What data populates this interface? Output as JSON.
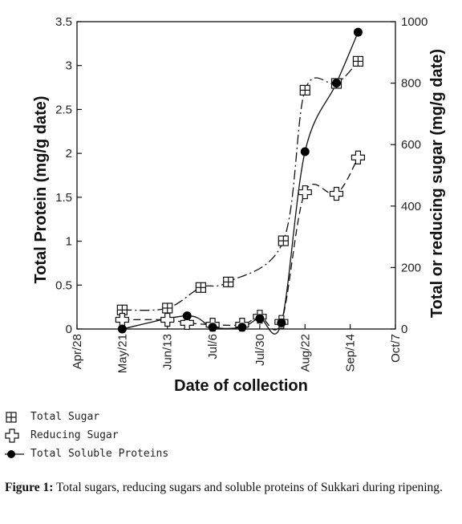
{
  "chart_data": {
    "type": "line",
    "xlabel": "Date of collection",
    "ylabel": "Total Protein (mg/g date)",
    "y2label": "Total or reducing sugar (mg/g date)",
    "x_ticks": [
      "Apr/28",
      "May/21",
      "Jun/13",
      "Jul/6",
      "Jul/30",
      "Aug/22",
      "Sep/14",
      "Oct/7"
    ],
    "ylim": [
      0,
      3.5
    ],
    "y_ticks": [
      "0",
      "0.5",
      "1",
      "1.5",
      "2",
      "2.5",
      "3",
      "3.5"
    ],
    "y2lim": [
      0,
      1000
    ],
    "y2_ticks": [
      "0",
      "200",
      "400",
      "600",
      "800",
      "1000"
    ],
    "grid": false,
    "series": [
      {
        "name": "Total Sugar",
        "axis": "right",
        "marker": "boxed-plus",
        "line": "dash-dot",
        "x": [
          "May/21",
          "Jun/13",
          "Jun/30",
          "Jul/14",
          "Aug/11",
          "Aug/22",
          "Sep/7",
          "Sep/18"
        ],
        "values": [
          62,
          68,
          135,
          153,
          287,
          777,
          799,
          871
        ]
      },
      {
        "name": "Reducing Sugar",
        "axis": "right",
        "marker": "open-cross",
        "line": "dashed",
        "x": [
          "May/21",
          "Jun/13",
          "Jun/23",
          "Jul/6",
          "Jul/21",
          "Jul/30",
          "Aug/10",
          "Aug/22",
          "Sep/7",
          "Sep/18"
        ],
        "values": [
          30,
          30,
          20,
          14,
          14,
          40,
          23,
          445,
          440,
          558
        ]
      },
      {
        "name": "Total Soluble Proteins",
        "axis": "left",
        "marker": "filled-circle",
        "line": "solid",
        "x": [
          "May/21",
          "Jun/23",
          "Jul/6",
          "Jul/21",
          "Jul/30",
          "Aug/10",
          "Aug/22",
          "Sep/7",
          "Sep/18"
        ],
        "values": [
          0.0,
          0.15,
          0.02,
          0.02,
          0.12,
          0.07,
          2.02,
          2.8,
          3.38
        ]
      }
    ]
  },
  "caption": {
    "label": "Figure 1:",
    "text": " Total sugars, reducing sugars and soluble proteins of Sukkari during ripening."
  }
}
